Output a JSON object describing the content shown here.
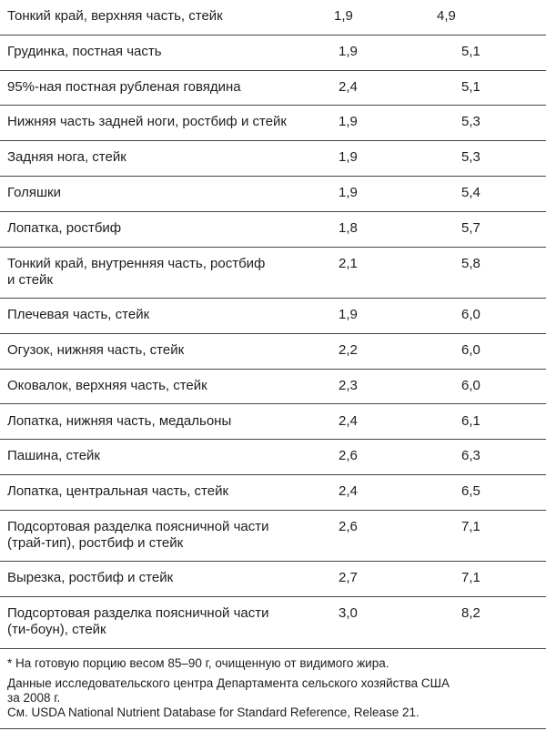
{
  "table": {
    "rows": [
      [
        [
          "Тонкий край, верхняя часть, стейк"
        ],
        "1,9",
        "4,9"
      ],
      [
        [
          "Грудинка, постная часть"
        ],
        "1,9",
        "5,1"
      ],
      [
        [
          "95%-ная постная рубленая говядина"
        ],
        "2,4",
        "5,1"
      ],
      [
        [
          "Нижняя часть задней ноги, ростбиф и стейк"
        ],
        "1,9",
        "5,3"
      ],
      [
        [
          "Задняя нога, стейк"
        ],
        "1,9",
        "5,3"
      ],
      [
        [
          "Голяшки"
        ],
        "1,9",
        "5,4"
      ],
      [
        [
          "Лопатка, ростбиф"
        ],
        "1,8",
        "5,7"
      ],
      [
        [
          "Тонкий край, внутренняя часть, ростбиф",
          "и стейк"
        ],
        "2,1",
        "5,8"
      ],
      [
        [
          "Плечевая часть, стейк"
        ],
        "1,9",
        "6,0"
      ],
      [
        [
          "Огузок, нижняя часть, стейк"
        ],
        "2,2",
        "6,0"
      ],
      [
        [
          "Оковалок, верхняя часть, стейк"
        ],
        "2,3",
        "6,0"
      ],
      [
        [
          "Лопатка, нижняя часть, медальоны"
        ],
        "2,4",
        "6,1"
      ],
      [
        [
          "Пашина, стейк"
        ],
        "2,6",
        "6,3"
      ],
      [
        [
          "Лопатка, центральная часть, стейк"
        ],
        "2,4",
        "6,5"
      ],
      [
        [
          "Подсортовая разделка поясничной части",
          "(трай-тип), ростбиф и стейк"
        ],
        "2,6",
        "7,1"
      ],
      [
        [
          "Вырезка, ростбиф и стейк"
        ],
        "2,7",
        "7,1"
      ],
      [
        [
          "Подсортовая разделка поясничной части",
          "(ти-боун), стейк"
        ],
        "3,0",
        "8,2"
      ]
    ]
  },
  "notes": [
    [
      "* На готовую порцию весом 85–90 г, очищенную от видимого жира."
    ],
    [
      "Данные исследовательского центра Департамента сельского хозяйства США",
      "за 2008 г.",
      "См. USDA National Nutrient Database for Standard Reference, Release 21."
    ]
  ]
}
